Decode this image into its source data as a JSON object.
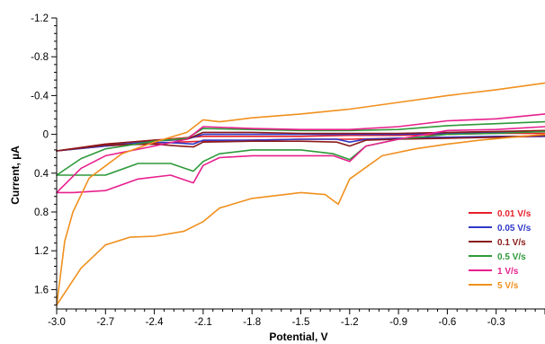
{
  "chart_data": {
    "type": "line",
    "title": "",
    "xlabel": "Potential, V",
    "ylabel": "Current, µA",
    "xlim": [
      -3.0,
      0.0
    ],
    "ylim": [
      -1.2,
      1.8
    ],
    "y_axis_inverted": true,
    "grid": false,
    "legend_position": "bottom-right",
    "x_ticks": [
      {
        "value": -3.0,
        "label": "-3.0"
      },
      {
        "value": -2.7,
        "label": "-2.7"
      },
      {
        "value": -2.4,
        "label": "-2.4"
      },
      {
        "value": -2.1,
        "label": "-2.1"
      },
      {
        "value": -1.8,
        "label": "-1.8"
      },
      {
        "value": -1.5,
        "label": "-1.5"
      },
      {
        "value": -1.2,
        "label": "-1.2"
      },
      {
        "value": -0.9,
        "label": "-0.9"
      },
      {
        "value": -0.6,
        "label": "-0.6"
      },
      {
        "value": -0.3,
        "label": "-0.3"
      }
    ],
    "y_ticks": [
      {
        "value": -1.2,
        "label": "-1.2"
      },
      {
        "value": -0.8,
        "label": "-0.8"
      },
      {
        "value": -0.4,
        "label": "-0.4"
      },
      {
        "value": 0.0,
        "label": "0"
      },
      {
        "value": 0.4,
        "label": "0.4"
      },
      {
        "value": 0.8,
        "label": "0.8"
      },
      {
        "value": 1.2,
        "label": "1.2"
      },
      {
        "value": 1.6,
        "label": "1.6"
      }
    ],
    "series": [
      {
        "name": "0.01 V/s",
        "color": "#e8202a",
        "forward": [
          [
            0.0,
            0.02
          ],
          [
            -0.3,
            0.03
          ],
          [
            -0.6,
            0.03
          ],
          [
            -0.9,
            0.04
          ],
          [
            -1.2,
            0.05
          ],
          [
            -1.5,
            0.05
          ],
          [
            -1.8,
            0.06
          ],
          [
            -2.1,
            0.07
          ],
          [
            -2.4,
            0.09
          ],
          [
            -2.7,
            0.12
          ],
          [
            -3.0,
            0.17
          ]
        ],
        "reverse": [
          [
            -3.0,
            0.17
          ],
          [
            -2.7,
            0.1
          ],
          [
            -2.4,
            0.06
          ],
          [
            -2.1,
            0.02
          ],
          [
            -1.8,
            0.02
          ],
          [
            -1.5,
            0.02
          ],
          [
            -1.2,
            0.01
          ],
          [
            -0.9,
            0.01
          ],
          [
            -0.6,
            0.0
          ],
          [
            -0.3,
            -0.01
          ],
          [
            0.0,
            -0.01
          ]
        ]
      },
      {
        "name": "0.05 V/s",
        "color": "#3038c8",
        "forward": [
          [
            0.0,
            0.02
          ],
          [
            -0.3,
            0.02
          ],
          [
            -0.6,
            0.03
          ],
          [
            -0.9,
            0.04
          ],
          [
            -1.1,
            0.05
          ],
          [
            -1.2,
            0.08
          ],
          [
            -1.28,
            0.05
          ],
          [
            -1.5,
            0.05
          ],
          [
            -1.8,
            0.06
          ],
          [
            -2.1,
            0.06
          ],
          [
            -2.16,
            0.1
          ],
          [
            -2.25,
            0.09
          ],
          [
            -2.4,
            0.08
          ],
          [
            -2.7,
            0.11
          ],
          [
            -3.0,
            0.17
          ]
        ],
        "reverse": [
          [
            -3.0,
            0.17
          ],
          [
            -2.7,
            0.12
          ],
          [
            -2.4,
            0.07
          ],
          [
            -2.2,
            0.05
          ],
          [
            -2.1,
            0.0
          ],
          [
            -1.8,
            0.0
          ],
          [
            -1.5,
            0.0
          ],
          [
            -1.2,
            0.0
          ],
          [
            -0.9,
            0.0
          ],
          [
            -0.6,
            -0.01
          ],
          [
            -0.3,
            -0.02
          ],
          [
            0.0,
            -0.03
          ]
        ]
      },
      {
        "name": "0.1 V/s",
        "color": "#8b1a1a",
        "forward": [
          [
            0.0,
            0.01
          ],
          [
            -0.3,
            0.03
          ],
          [
            -0.6,
            0.04
          ],
          [
            -0.9,
            0.05
          ],
          [
            -1.1,
            0.06
          ],
          [
            -1.2,
            0.12
          ],
          [
            -1.28,
            0.08
          ],
          [
            -1.5,
            0.07
          ],
          [
            -1.8,
            0.07
          ],
          [
            -2.1,
            0.08
          ],
          [
            -2.16,
            0.13
          ],
          [
            -2.25,
            0.12
          ],
          [
            -2.4,
            0.1
          ],
          [
            -2.7,
            0.11
          ],
          [
            -3.0,
            0.17
          ]
        ],
        "reverse": [
          [
            -3.0,
            0.17
          ],
          [
            -2.7,
            0.1
          ],
          [
            -2.4,
            0.06
          ],
          [
            -2.2,
            0.05
          ],
          [
            -2.1,
            -0.02
          ],
          [
            -1.8,
            -0.02
          ],
          [
            -1.5,
            -0.01
          ],
          [
            -1.2,
            -0.01
          ],
          [
            -0.9,
            -0.01
          ],
          [
            -0.6,
            -0.02
          ],
          [
            -0.3,
            -0.03
          ],
          [
            0.0,
            -0.04
          ]
        ]
      },
      {
        "name": "0.5 V/s",
        "color": "#2e9a3a",
        "forward": [
          [
            0.0,
            -0.03
          ],
          [
            -0.3,
            -0.01
          ],
          [
            -0.6,
            0.0
          ],
          [
            -0.9,
            0.05
          ],
          [
            -1.1,
            0.12
          ],
          [
            -1.2,
            0.26
          ],
          [
            -1.3,
            0.2
          ],
          [
            -1.5,
            0.16
          ],
          [
            -1.8,
            0.16
          ],
          [
            -2.0,
            0.2
          ],
          [
            -2.1,
            0.28
          ],
          [
            -2.16,
            0.38
          ],
          [
            -2.3,
            0.3
          ],
          [
            -2.5,
            0.3
          ],
          [
            -2.7,
            0.42
          ],
          [
            -2.9,
            0.42
          ],
          [
            -3.0,
            0.42
          ]
        ],
        "reverse": [
          [
            -3.0,
            0.42
          ],
          [
            -2.85,
            0.25
          ],
          [
            -2.7,
            0.15
          ],
          [
            -2.4,
            0.07
          ],
          [
            -2.2,
            0.04
          ],
          [
            -2.1,
            -0.06
          ],
          [
            -1.8,
            -0.05
          ],
          [
            -1.5,
            -0.04
          ],
          [
            -1.2,
            -0.04
          ],
          [
            -0.9,
            -0.05
          ],
          [
            -0.6,
            -0.09
          ],
          [
            -0.3,
            -0.11
          ],
          [
            0.0,
            -0.13
          ]
        ]
      },
      {
        "name": "1 V/s",
        "color": "#e8208e",
        "forward": [
          [
            0.0,
            -0.08
          ],
          [
            -0.3,
            -0.05
          ],
          [
            -0.6,
            -0.04
          ],
          [
            -0.9,
            0.05
          ],
          [
            -1.1,
            0.12
          ],
          [
            -1.2,
            0.28
          ],
          [
            -1.3,
            0.22
          ],
          [
            -1.5,
            0.22
          ],
          [
            -1.8,
            0.22
          ],
          [
            -2.0,
            0.24
          ],
          [
            -2.1,
            0.32
          ],
          [
            -2.16,
            0.5
          ],
          [
            -2.3,
            0.42
          ],
          [
            -2.5,
            0.46
          ],
          [
            -2.7,
            0.58
          ],
          [
            -2.9,
            0.6
          ],
          [
            -3.0,
            0.6
          ]
        ],
        "reverse": [
          [
            -3.0,
            0.6
          ],
          [
            -2.85,
            0.35
          ],
          [
            -2.7,
            0.22
          ],
          [
            -2.4,
            0.12
          ],
          [
            -2.2,
            0.05
          ],
          [
            -2.1,
            -0.08
          ],
          [
            -1.8,
            -0.06
          ],
          [
            -1.5,
            -0.05
          ],
          [
            -1.2,
            -0.05
          ],
          [
            -0.9,
            -0.08
          ],
          [
            -0.6,
            -0.14
          ],
          [
            -0.3,
            -0.16
          ],
          [
            0.0,
            -0.21
          ]
        ]
      },
      {
        "name": "5 V/s",
        "color": "#f0901e",
        "forward": [
          [
            0.0,
            0.0
          ],
          [
            -0.2,
            0.03
          ],
          [
            -0.4,
            0.06
          ],
          [
            -0.6,
            0.1
          ],
          [
            -0.8,
            0.15
          ],
          [
            -1.0,
            0.22
          ],
          [
            -1.1,
            0.34
          ],
          [
            -1.2,
            0.46
          ],
          [
            -1.27,
            0.72
          ],
          [
            -1.35,
            0.62
          ],
          [
            -1.5,
            0.6
          ],
          [
            -1.8,
            0.66
          ],
          [
            -2.0,
            0.76
          ],
          [
            -2.1,
            0.9
          ],
          [
            -2.22,
            1.0
          ],
          [
            -2.4,
            1.05
          ],
          [
            -2.55,
            1.06
          ],
          [
            -2.7,
            1.14
          ],
          [
            -2.85,
            1.38
          ],
          [
            -3.0,
            1.76
          ]
        ],
        "reverse": [
          [
            -3.0,
            1.76
          ],
          [
            -2.95,
            1.1
          ],
          [
            -2.9,
            0.8
          ],
          [
            -2.8,
            0.45
          ],
          [
            -2.6,
            0.2
          ],
          [
            -2.4,
            0.08
          ],
          [
            -2.2,
            -0.02
          ],
          [
            -2.1,
            -0.15
          ],
          [
            -2.0,
            -0.13
          ],
          [
            -1.8,
            -0.17
          ],
          [
            -1.5,
            -0.21
          ],
          [
            -1.2,
            -0.26
          ],
          [
            -0.9,
            -0.33
          ],
          [
            -0.6,
            -0.4
          ],
          [
            -0.3,
            -0.46
          ],
          [
            0.0,
            -0.53
          ]
        ]
      }
    ]
  }
}
